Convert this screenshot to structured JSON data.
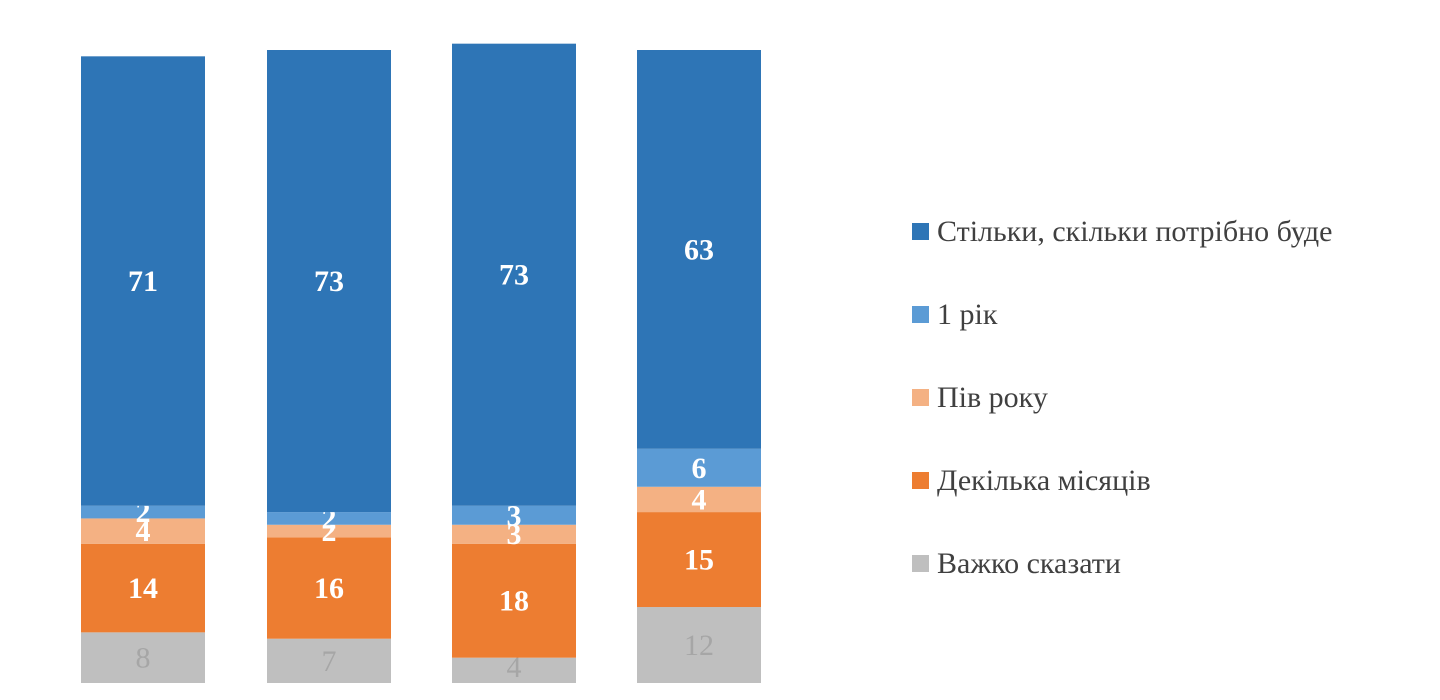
{
  "chart_data": {
    "type": "bar",
    "stacked": true,
    "orientation": "vertical",
    "percent_scale": true,
    "categories": [
      "",
      "",
      "",
      ""
    ],
    "series": [
      {
        "name": "Важко сказати",
        "color": "#bfbfbf",
        "label_color": "#a6a6a6",
        "values": [
          8,
          7,
          4,
          12
        ]
      },
      {
        "name": "Декілька місяців",
        "color": "#ed7d31",
        "label_color": "#ffffff",
        "values": [
          14,
          16,
          18,
          15
        ]
      },
      {
        "name": "Пів року",
        "color": "#f4b183",
        "label_color": "#ffffff",
        "values": [
          4,
          2,
          3,
          4
        ]
      },
      {
        "name": "1 рік",
        "color": "#5b9bd5",
        "label_color": "#ffffff",
        "values": [
          2,
          2,
          3,
          6
        ]
      },
      {
        "name": "Стільки, скільки потрібно буде",
        "color": "#2e75b6",
        "label_color": "#ffffff",
        "values": [
          71,
          73,
          73,
          63
        ]
      }
    ],
    "legend_order": [
      "Стільки, скільки потрібно буде",
      "1 рік",
      "Пів року",
      "Декілька місяців",
      "Важко сказати"
    ],
    "legend_position": "right",
    "grid": false,
    "axes_visible": false
  }
}
